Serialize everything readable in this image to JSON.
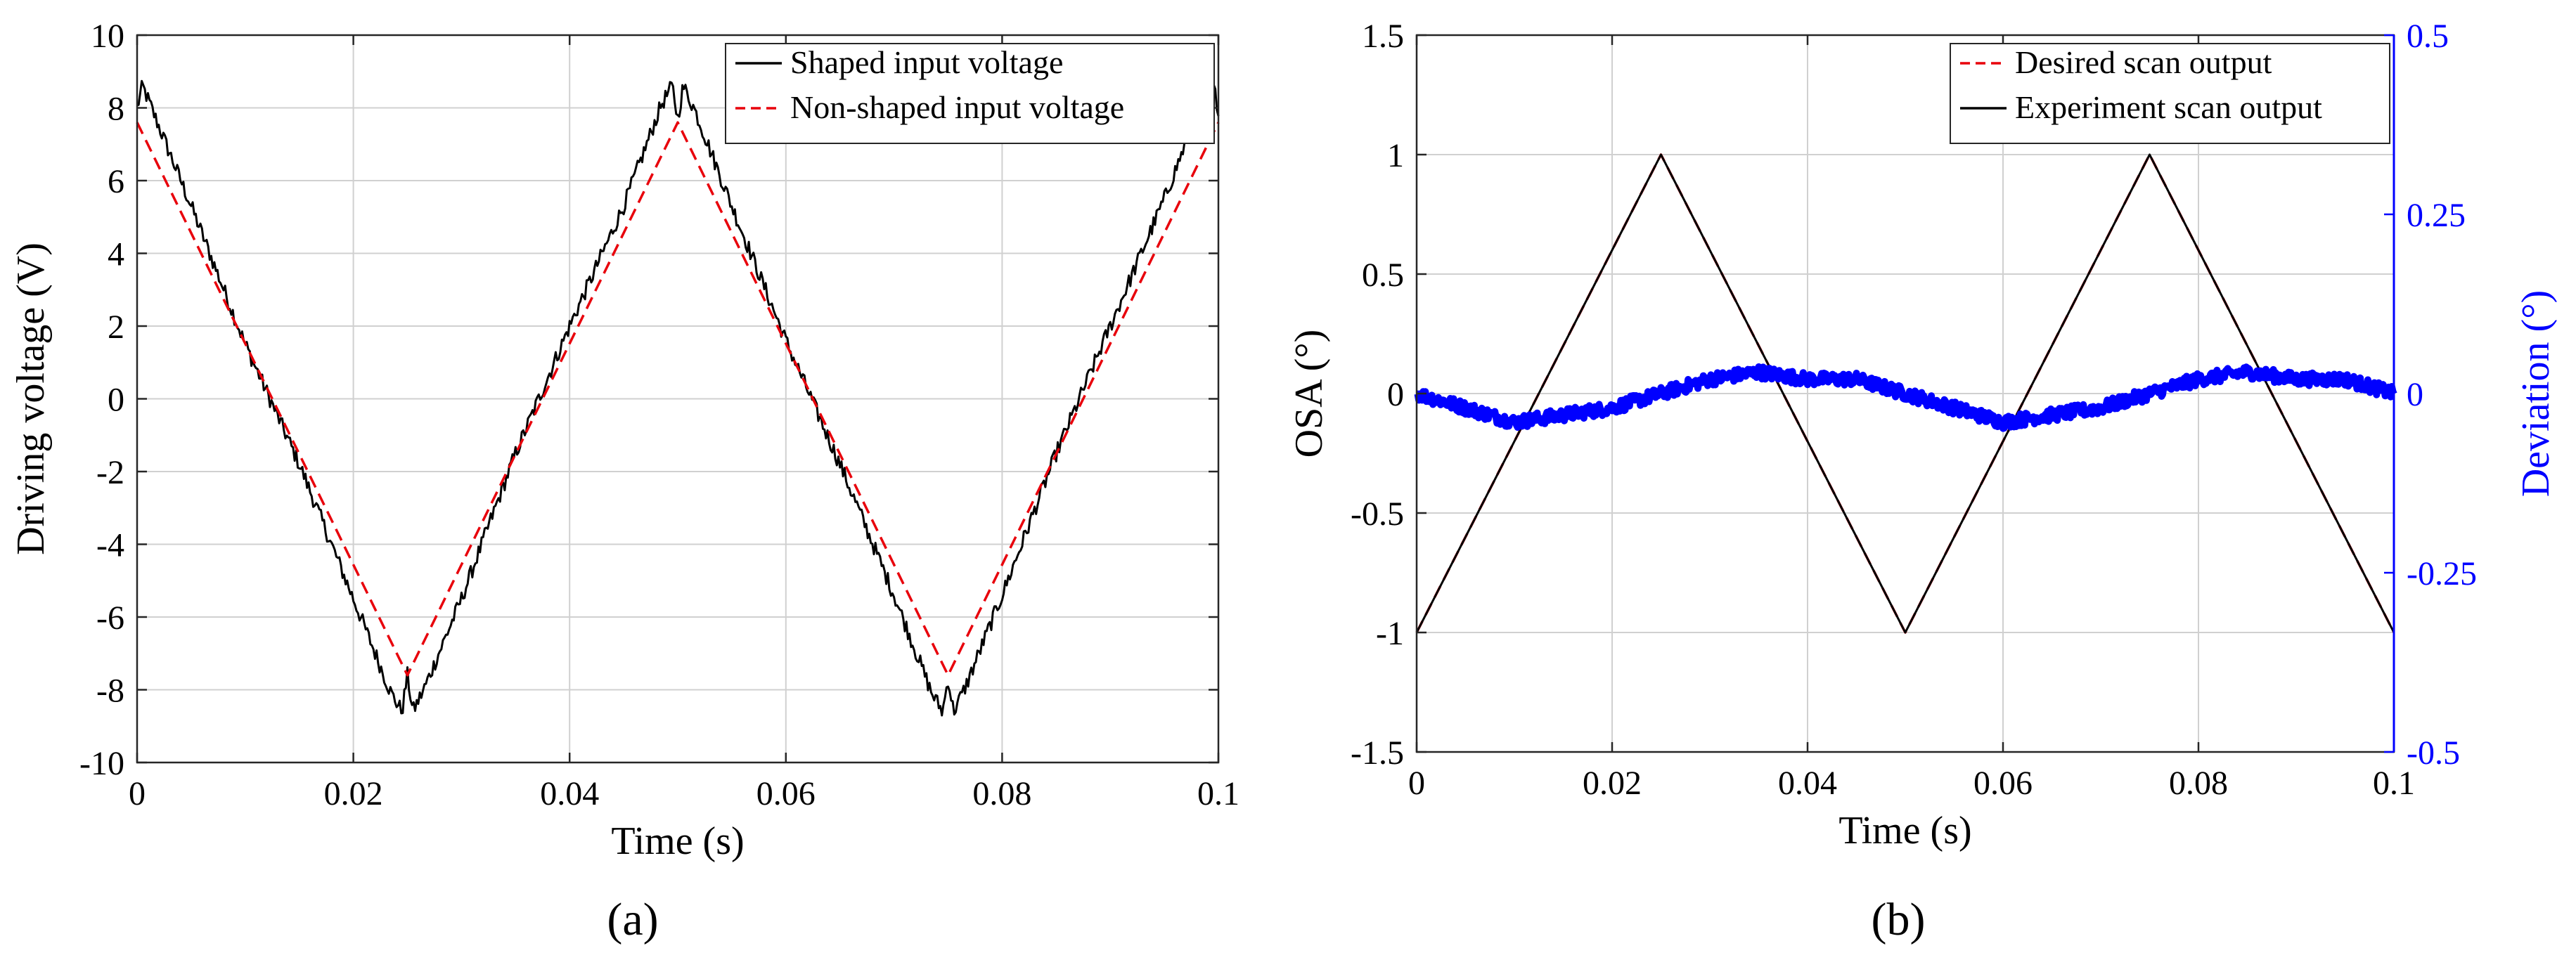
{
  "figure": {
    "panels": [
      "(a)",
      "(b)"
    ]
  },
  "chart_data": [
    {
      "type": "line",
      "panel": "(a)",
      "title": "",
      "xlabel": "Time (s)",
      "ylabel": "Driving voltage (V)",
      "xlim": [
        0,
        0.1
      ],
      "ylim": [
        -10,
        10
      ],
      "grid": true,
      "xticks": [
        0,
        0.02,
        0.04,
        0.06,
        0.08,
        0.1
      ],
      "xtick_labels": [
        "0",
        "0.02",
        "0.04",
        "0.06",
        "0.08",
        "0.1"
      ],
      "yticks": [
        -10,
        -8,
        -6,
        -4,
        -2,
        0,
        2,
        4,
        6,
        8,
        10
      ],
      "ytick_labels": [
        "-10",
        "-8",
        "-6",
        "-4",
        "-2",
        "0",
        "2",
        "4",
        "6",
        "8",
        "10"
      ],
      "legend_position": "top-right",
      "series": [
        {
          "name": "Shaped input voltage",
          "color": "#000000",
          "style": "solid",
          "x": [
            0,
            0.0005,
            0.005,
            0.01,
            0.015,
            0.02,
            0.0235,
            0.0245,
            0.025,
            0.0255,
            0.0265,
            0.03,
            0.035,
            0.04,
            0.045,
            0.0485,
            0.0495,
            0.05,
            0.0505,
            0.0515,
            0.055,
            0.06,
            0.065,
            0.07,
            0.0735,
            0.0745,
            0.075,
            0.0755,
            0.0765,
            0.08,
            0.085,
            0.09,
            0.095,
            0.0985,
            0.0995,
            0.1
          ],
          "y": [
            8.0,
            8.6,
            5.3,
            1.5,
            -1.8,
            -5.5,
            -8.1,
            -8.6,
            -7.6,
            -8.6,
            -8.0,
            -5.5,
            -1.5,
            2.0,
            5.3,
            8.1,
            8.6,
            7.7,
            8.6,
            8.0,
            5.3,
            1.6,
            -1.8,
            -5.4,
            -8.1,
            -8.6,
            -7.7,
            -8.6,
            -8.0,
            -5.4,
            -1.5,
            2.0,
            5.5,
            8.2,
            8.6,
            8.0
          ]
        },
        {
          "name": "Non-shaped input voltage",
          "color": "#e8000b",
          "style": "dashed",
          "x": [
            0,
            0.025,
            0.05,
            0.075,
            0.1
          ],
          "y": [
            7.6,
            -7.6,
            7.6,
            -7.6,
            7.6
          ]
        }
      ]
    },
    {
      "type": "line",
      "panel": "(b)",
      "title": "",
      "xlabel": "Time (s)",
      "ylabel": "OSA (°)",
      "ylabel_right": "Deviation (°)",
      "xlim": [
        0,
        0.1
      ],
      "ylim": [
        -1.5,
        1.5
      ],
      "ylim_right": [
        -0.5,
        0.5
      ],
      "grid": true,
      "xticks": [
        0,
        0.02,
        0.04,
        0.06,
        0.08,
        0.1
      ],
      "xtick_labels": [
        "0",
        "0.02",
        "0.04",
        "0.06",
        "0.08",
        "0.1"
      ],
      "yticks": [
        -1.5,
        -1,
        -0.5,
        0,
        0.5,
        1,
        1.5
      ],
      "ytick_labels": [
        "-1.5",
        "-1",
        "-0.5",
        "0",
        "0.5",
        "1",
        "1.5"
      ],
      "yticks_right": [
        -0.5,
        -0.25,
        0,
        0.25,
        0.5
      ],
      "ytick_labels_right": [
        "-0.5",
        "-0.25",
        "0",
        "0.25",
        "0.5"
      ],
      "right_axis_color": "#0000ff",
      "legend_position": "top-right",
      "series": [
        {
          "name": "Desired scan output",
          "color": "#e8000b",
          "style": "dashed",
          "axis": "left",
          "x": [
            0,
            0.025,
            0.05,
            0.075,
            0.1
          ],
          "y": [
            -1,
            1,
            -1,
            1,
            -1
          ]
        },
        {
          "name": "Experiment scan output",
          "color": "#000000",
          "style": "solid",
          "axis": "left",
          "x": [
            0,
            0.025,
            0.05,
            0.075,
            0.1
          ],
          "y": [
            -1,
            1,
            -1,
            1,
            -1
          ]
        },
        {
          "name": "Deviation",
          "color": "#0000ff",
          "style": "thick",
          "axis": "right",
          "x": [
            0,
            0.005,
            0.01,
            0.015,
            0.02,
            0.025,
            0.03,
            0.035,
            0.04,
            0.045,
            0.05,
            0.055,
            0.06,
            0.065,
            0.07,
            0.075,
            0.08,
            0.085,
            0.09,
            0.095,
            0.1
          ],
          "y": [
            0.0,
            -0.02,
            -0.04,
            -0.03,
            -0.02,
            0.0,
            0.02,
            0.03,
            0.02,
            0.02,
            0.0,
            -0.02,
            -0.04,
            -0.03,
            -0.02,
            0.0,
            0.02,
            0.03,
            0.02,
            0.02,
            0.0
          ]
        }
      ]
    }
  ]
}
